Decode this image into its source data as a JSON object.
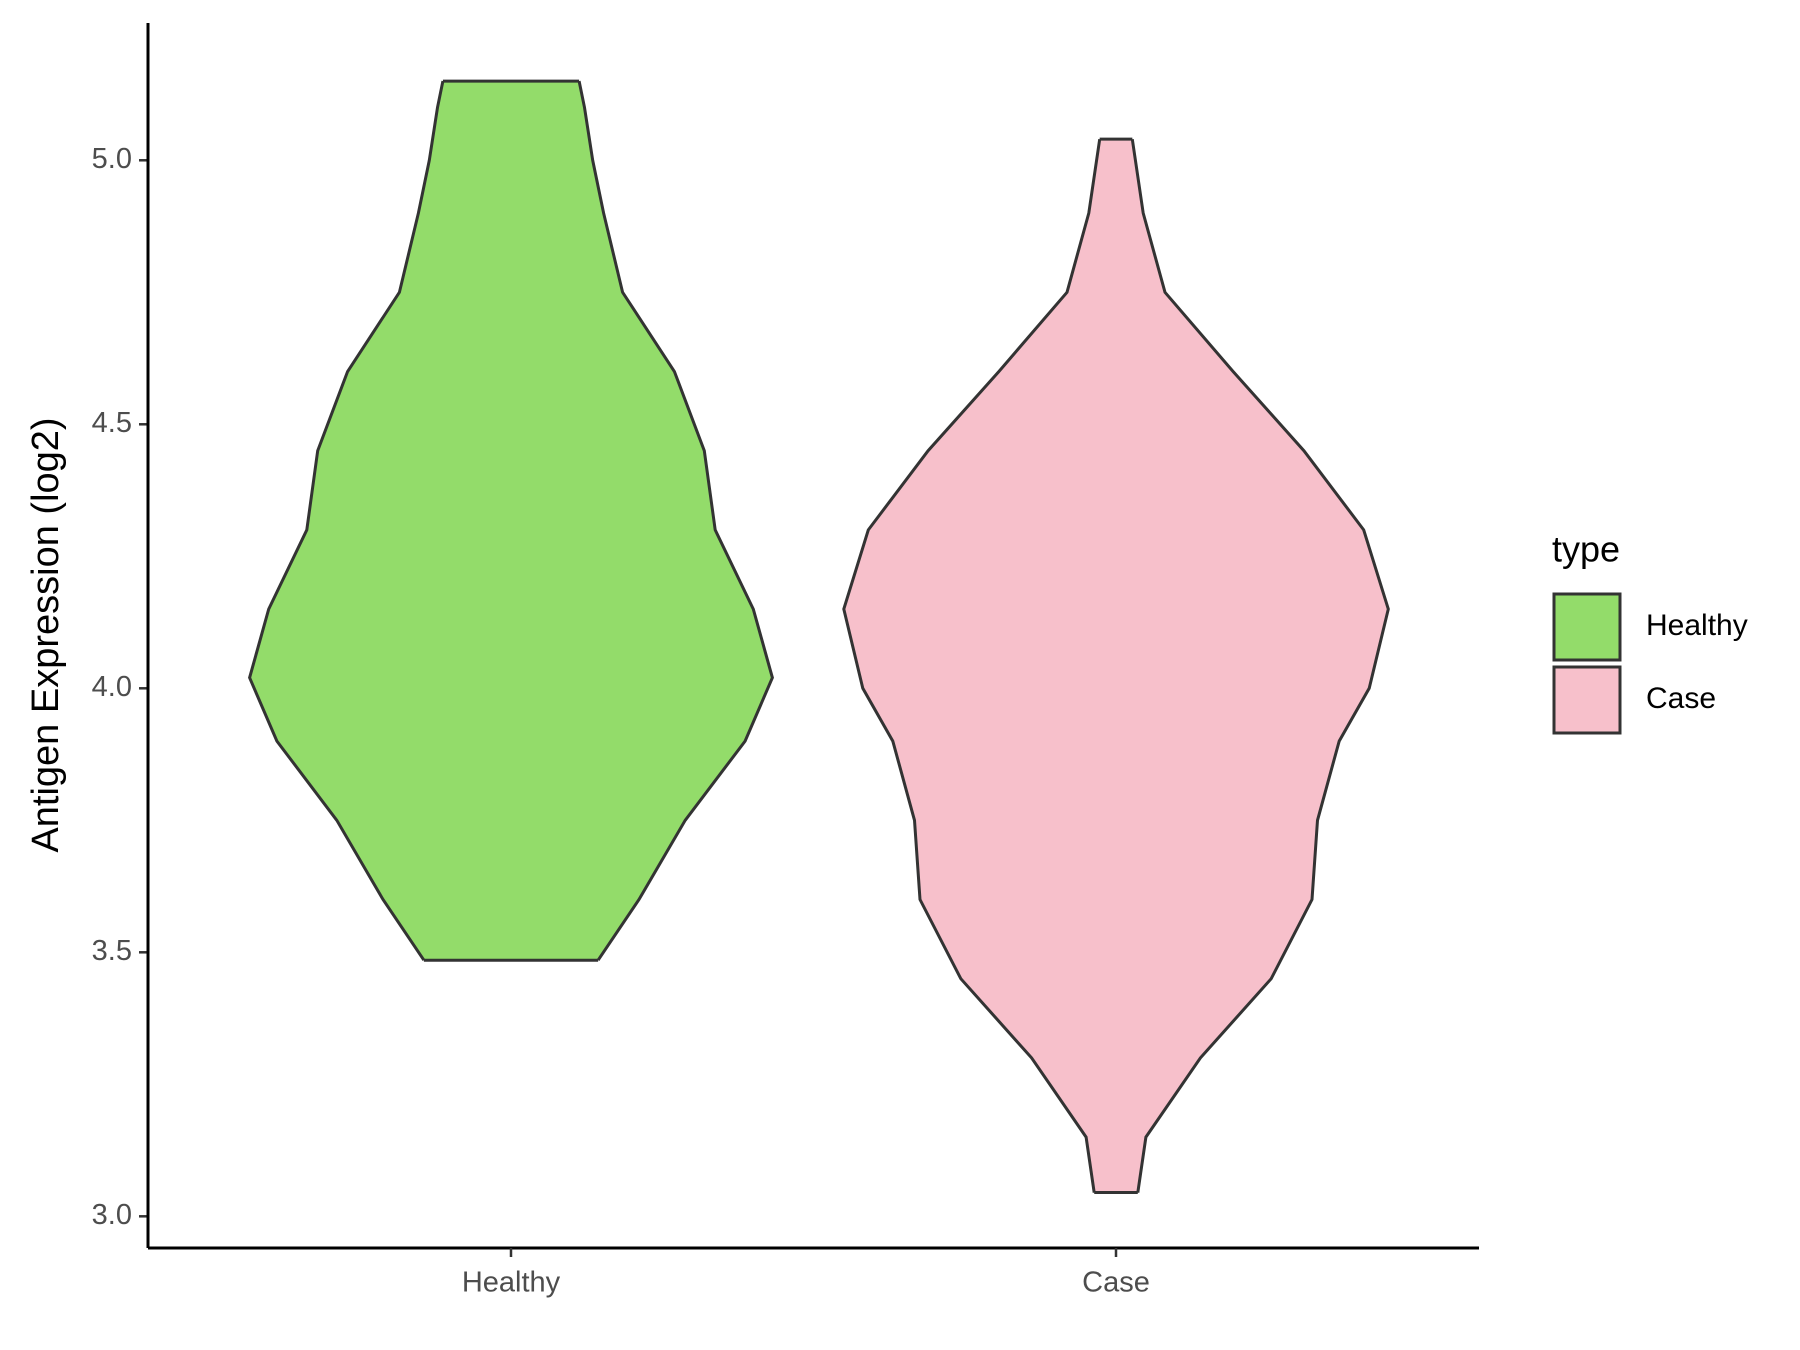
{
  "chart_data": {
    "type": "violin",
    "y_label": "Antigen Expression (log2)",
    "categories": [
      "Healthy",
      "Case"
    ],
    "ylim": [
      2.94,
      5.26
    ],
    "yticks": [
      {
        "value": 3,
        "label": "3.0"
      },
      3.5,
      {
        "value": 4,
        "label": "4.0"
      },
      4.5,
      {
        "value": 5,
        "label": "5.0"
      }
    ],
    "legend_title": "type",
    "legend_position": "right",
    "series": [
      {
        "name": "Healthy",
        "color": "#93dc6a",
        "y": [
          3.485,
          3.6,
          3.75,
          3.9,
          4.02,
          4.15,
          4.3,
          4.45,
          4.6,
          4.75,
          4.9,
          5.0,
          5.1,
          5.15
        ],
        "density": [
          0.32,
          0.47,
          0.64,
          0.86,
          0.96,
          0.89,
          0.75,
          0.71,
          0.6,
          0.41,
          0.34,
          0.3,
          0.27,
          0.25
        ]
      },
      {
        "name": "Case",
        "color": "#f7c0cb",
        "y": [
          3.045,
          3.15,
          3.3,
          3.45,
          3.6,
          3.75,
          3.9,
          4.0,
          4.15,
          4.3,
          4.45,
          4.6,
          4.75,
          4.9,
          5.04
        ],
        "density": [
          0.08,
          0.11,
          0.31,
          0.57,
          0.72,
          0.74,
          0.82,
          0.93,
          1.0,
          0.91,
          0.69,
          0.43,
          0.18,
          0.1,
          0.06
        ]
      }
    ]
  }
}
